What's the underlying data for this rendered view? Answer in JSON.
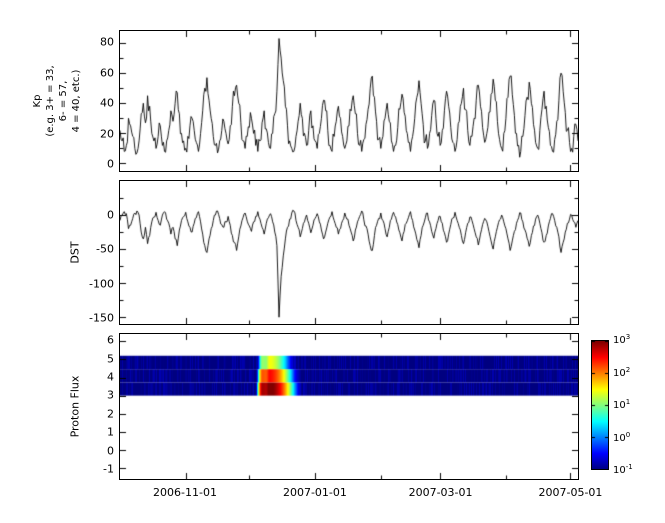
{
  "figure": {
    "background": "#ffffff",
    "axis_color": "#000000",
    "line_color": "#000000"
  },
  "x_axis": {
    "tick_labels": [
      "2006-11-01",
      "2007-01-01",
      "2007-03-01",
      "2007-05-01"
    ],
    "tick_days": [
      31,
      92,
      151,
      212
    ],
    "minor_tick_days": [
      61,
      123,
      182
    ],
    "domain_days": 216
  },
  "chart_data": [
    {
      "type": "line",
      "name": "kp_index",
      "title": "",
      "ylabel_lines": [
        "Kp",
        "(e.g. 3+ = 33,",
        "6- = 57,",
        "4 = 40, etc.)"
      ],
      "ylim": [
        -5,
        88
      ],
      "yticks": [
        80,
        60,
        40,
        20,
        0
      ],
      "y_minor_ticks": [
        70,
        50,
        30,
        10
      ],
      "color": "#000000",
      "jitter": 14,
      "min_clamp": 0,
      "max_clamp": 86,
      "seed": 1,
      "values": [
        22,
        15,
        8,
        12,
        30,
        25,
        18,
        10,
        7,
        15,
        33,
        40,
        27,
        45,
        38,
        20,
        15,
        10,
        18,
        25,
        12,
        8,
        15,
        22,
        35,
        28,
        40,
        47,
        33,
        20,
        15,
        10,
        18,
        25,
        30,
        22,
        14,
        8,
        20,
        35,
        50,
        57,
        42,
        30,
        18,
        12,
        7,
        15,
        22,
        28,
        20,
        13,
        25,
        38,
        45,
        52,
        40,
        27,
        15,
        10,
        18,
        24,
        30,
        20,
        12,
        8,
        15,
        27,
        35,
        23,
        14,
        10,
        20,
        33,
        48,
        83,
        70,
        55,
        38,
        25,
        15,
        10,
        8,
        18,
        28,
        40,
        30,
        20,
        12,
        22,
        35,
        25,
        15,
        10,
        20,
        30,
        42,
        35,
        22,
        12,
        8,
        18,
        28,
        38,
        30,
        18,
        10,
        15,
        25,
        35,
        45,
        33,
        20,
        12,
        8,
        16,
        26,
        36,
        50,
        58,
        44,
        28,
        16,
        10,
        18,
        30,
        40,
        28,
        15,
        8,
        12,
        24,
        36,
        46,
        34,
        22,
        14,
        8,
        18,
        30,
        44,
        55,
        40,
        26,
        15,
        10,
        20,
        32,
        42,
        30,
        18,
        12,
        22,
        35,
        48,
        38,
        24,
        14,
        8,
        16,
        28,
        40,
        50,
        36,
        22,
        12,
        18,
        30,
        42,
        52,
        38,
        24,
        14,
        20,
        34,
        46,
        56,
        42,
        28,
        16,
        10,
        20,
        30,
        44,
        58,
        46,
        32,
        20,
        12,
        8,
        18,
        32,
        44,
        54,
        40,
        26,
        14,
        10,
        22,
        36,
        48,
        38,
        24,
        12,
        8,
        16,
        28,
        42,
        60,
        48,
        34,
        22,
        14,
        10,
        18,
        26,
        15
      ]
    },
    {
      "type": "line",
      "name": "dst_index",
      "title": "",
      "ylabel": "DST",
      "ylim": [
        -160,
        50
      ],
      "yticks": [
        0,
        -50,
        -100,
        -150
      ],
      "y_minor_ticks": [
        25,
        -25,
        -75,
        -125
      ],
      "color": "#000000",
      "jitter": 9,
      "min_clamp": -158,
      "max_clamp": 45,
      "seed": 2,
      "values": [
        -8,
        0,
        5,
        2,
        -20,
        -15,
        -5,
        3,
        6,
        0,
        -25,
        -35,
        -18,
        -42,
        -30,
        -10,
        -3,
        4,
        -8,
        -15,
        0,
        5,
        -6,
        -12,
        -28,
        -18,
        -35,
        -45,
        -22,
        -8,
        -2,
        4,
        -10,
        -18,
        -25,
        -12,
        -4,
        5,
        -10,
        -28,
        -45,
        -55,
        -35,
        -20,
        -8,
        0,
        6,
        -5,
        -14,
        -18,
        -10,
        -2,
        -15,
        -30,
        -40,
        -52,
        -32,
        -16,
        -4,
        3,
        -9,
        -16,
        -24,
        -10,
        -2,
        5,
        -6,
        -18,
        -28,
        -12,
        -4,
        2,
        -10,
        -25,
        -45,
        -150,
        -90,
        -60,
        -35,
        -18,
        -6,
        3,
        6,
        -8,
        -18,
        -32,
        -20,
        -10,
        0,
        -12,
        -26,
        -15,
        -5,
        2,
        -10,
        -22,
        -35,
        -25,
        -12,
        -3,
        5,
        -8,
        -18,
        -28,
        -20,
        -8,
        3,
        -6,
        -15,
        -25,
        -38,
        -22,
        -10,
        -2,
        6,
        -7,
        -16,
        -28,
        -45,
        -52,
        -30,
        -15,
        -5,
        3,
        -8,
        -20,
        -32,
        -18,
        -6,
        4,
        -3,
        -14,
        -26,
        -38,
        -24,
        -12,
        -4,
        5,
        -8,
        -22,
        -36,
        -48,
        -30,
        -15,
        -4,
        3,
        -10,
        -24,
        -34,
        -20,
        -8,
        -2,
        -12,
        -26,
        -40,
        -28,
        -14,
        -4,
        4,
        -8,
        -18,
        -30,
        -42,
        -26,
        -12,
        -3,
        -8,
        -20,
        -32,
        -44,
        -28,
        -14,
        -5,
        -10,
        -24,
        -38,
        -50,
        -32,
        -18,
        -7,
        0,
        -10,
        -20,
        -35,
        -52,
        -38,
        -24,
        -12,
        -4,
        3,
        -10,
        -22,
        -34,
        -46,
        -30,
        -16,
        -6,
        0,
        -12,
        -26,
        -40,
        -30,
        -16,
        -5,
        2,
        -8,
        -18,
        -32,
        -55,
        -40,
        -25,
        -12,
        -6,
        0,
        -10,
        -18,
        -8
      ]
    },
    {
      "type": "spectrogram",
      "name": "proton_flux",
      "title": "",
      "ylabel": "Proton Flux",
      "ylim": [
        -1.6,
        6.4
      ],
      "yticks": [
        6,
        5,
        4,
        3,
        2,
        1,
        0,
        -1
      ],
      "y_minor_ticks": [],
      "band": [
        3.0,
        5.2
      ],
      "background_flux": 0.09,
      "channels": [
        {
          "y_range": [
            3.0,
            3.73
          ]
        },
        {
          "y_range": [
            3.73,
            4.46
          ]
        },
        {
          "y_range": [
            4.46,
            5.2
          ]
        }
      ],
      "events": [
        {
          "peak_day": 67.0,
          "rise": 0.7,
          "decay": 2.6,
          "amps": [
            700,
            150,
            12
          ]
        },
        {
          "peak_day": 70.5,
          "rise": 0.8,
          "decay": 3.2,
          "amps": [
            1000,
            250,
            25
          ]
        }
      ],
      "colorbar": {
        "scale": "log",
        "colormap": "jet",
        "min_exponent": -1,
        "max_exponent": 3,
        "tick_exponents": [
          3,
          2,
          1,
          0,
          -1
        ]
      }
    }
  ]
}
